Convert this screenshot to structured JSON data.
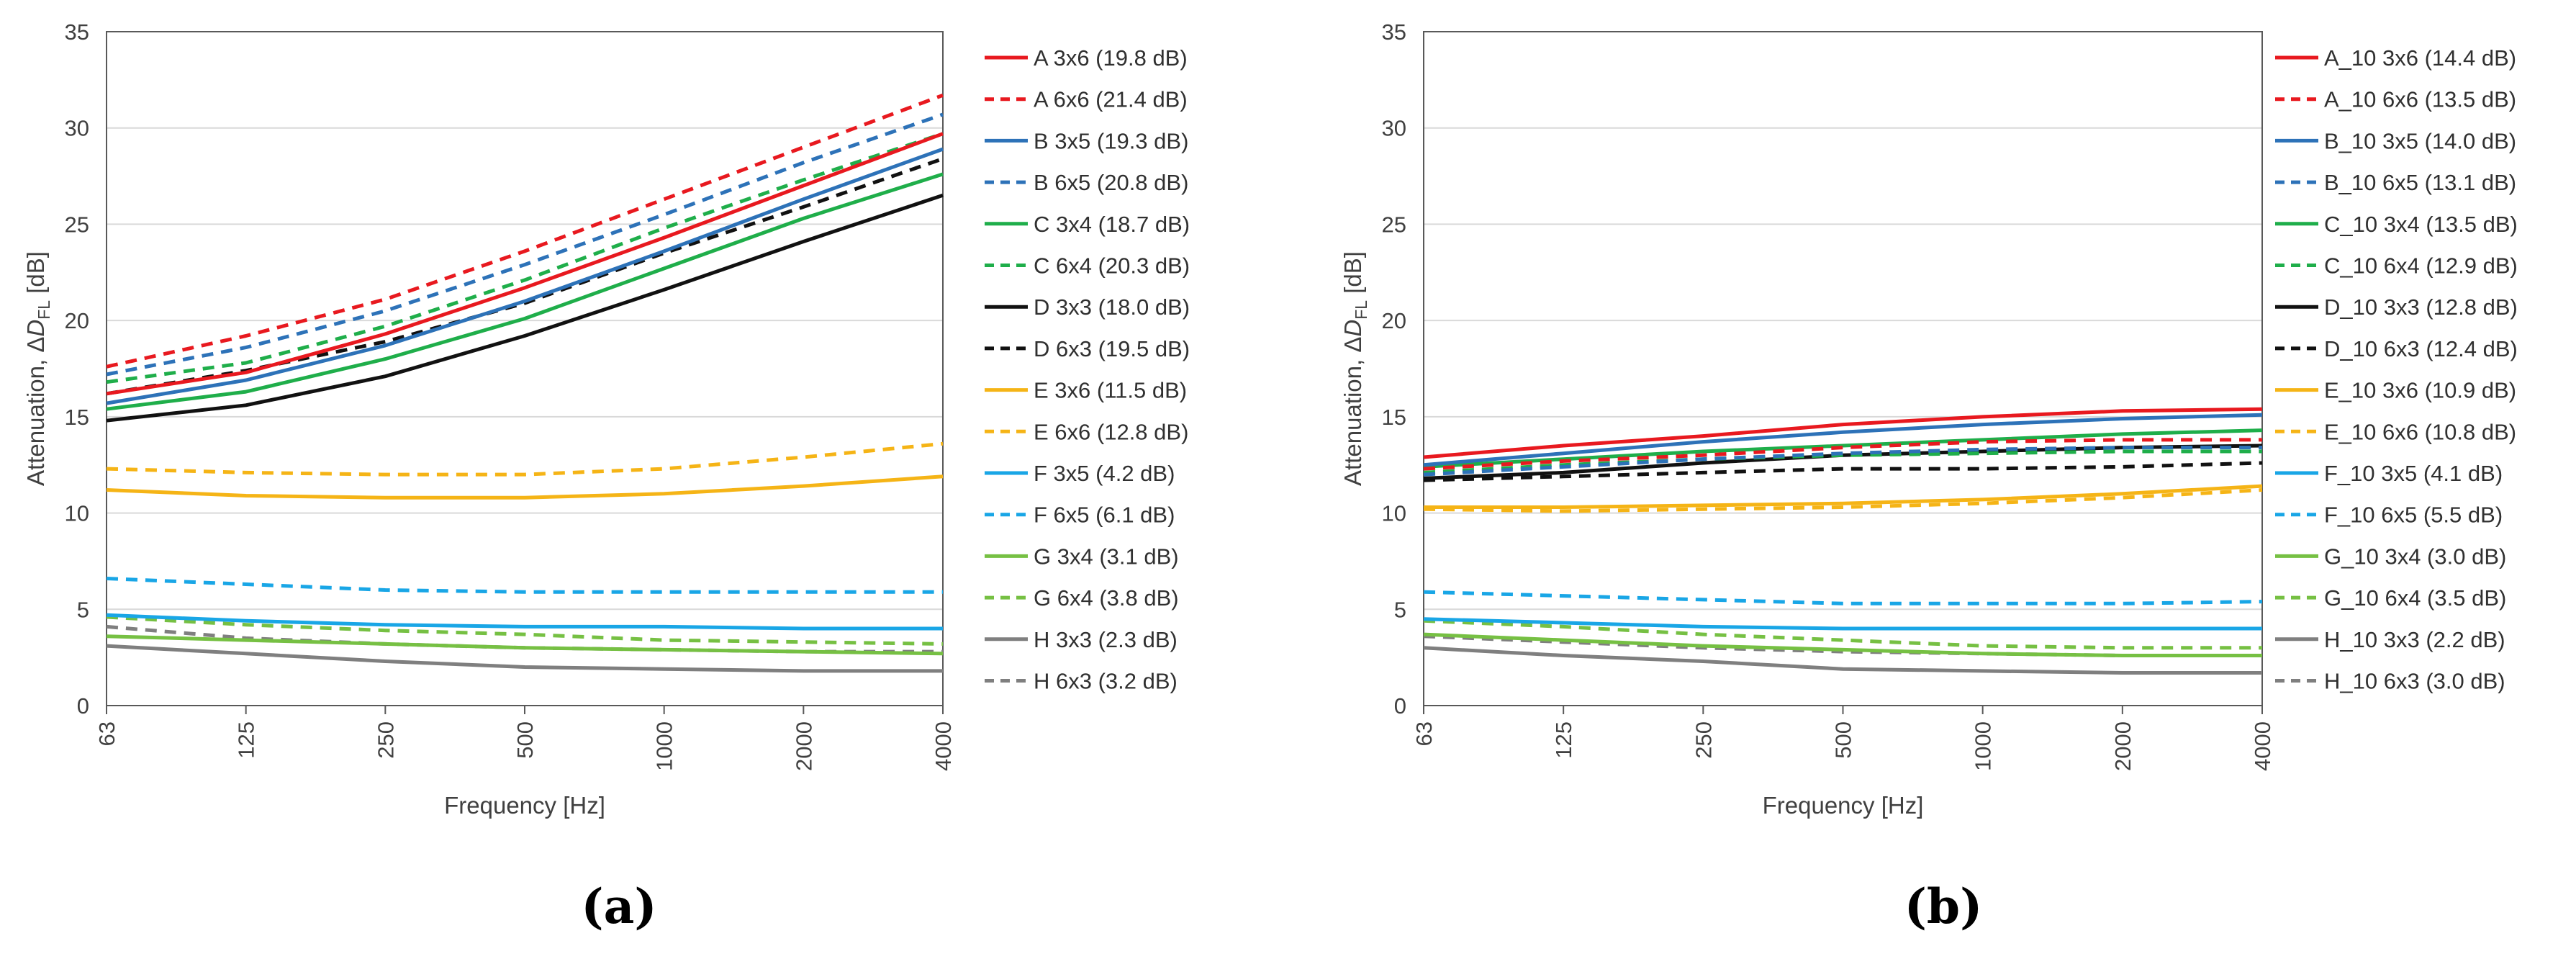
{
  "colors": {
    "A": "#e8191f",
    "B": "#2d72b8",
    "C": "#1fae4a",
    "D": "#111111",
    "E": "#f5b416",
    "F": "#19a6e6",
    "G": "#76c043",
    "H": "#7f7f7f",
    "grid": "#d9d9d9",
    "axis": "#595959"
  },
  "chart_data": [
    {
      "type": "line",
      "panel_label": "(a)",
      "xlabel": "Frequency [Hz]",
      "ylabel_main": "Attenuation, Δ",
      "ylabel_italic": "D",
      "ylabel_sub": "FL",
      "ylabel_unit": " [dB]",
      "ylim": [
        0,
        35
      ],
      "yticks": [
        "0",
        "5",
        "10",
        "15",
        "20",
        "25",
        "30",
        "35"
      ],
      "categories": [
        "63",
        "125",
        "250",
        "500",
        "1000",
        "2000",
        "4000"
      ],
      "grid": true,
      "legend_position": "right",
      "series": [
        {
          "name": "A 3x6 (19.8 dB)",
          "group": "A",
          "dashed": false,
          "values": [
            16.2,
            17.3,
            19.3,
            21.7,
            24.3,
            27.0,
            29.7
          ]
        },
        {
          "name": "A 6x6 (21.4 dB)",
          "group": "A",
          "dashed": true,
          "values": [
            17.6,
            19.2,
            21.1,
            23.6,
            26.3,
            29.0,
            31.7
          ]
        },
        {
          "name": "B 3x5 (19.3 dB)",
          "group": "B",
          "dashed": false,
          "values": [
            15.7,
            16.9,
            18.7,
            21.0,
            23.6,
            26.3,
            28.9
          ]
        },
        {
          "name": "B 6x5 (20.8 dB)",
          "group": "B",
          "dashed": true,
          "values": [
            17.2,
            18.6,
            20.5,
            22.9,
            25.5,
            28.2,
            30.7
          ]
        },
        {
          "name": "C 3x4 (18.7 dB)",
          "group": "C",
          "dashed": false,
          "values": [
            15.4,
            16.3,
            18.0,
            20.1,
            22.7,
            25.3,
            27.6
          ]
        },
        {
          "name": "C 6x4 (20.3 dB)",
          "group": "C",
          "dashed": true,
          "values": [
            16.8,
            17.8,
            19.7,
            22.1,
            24.8,
            27.3,
            29.7
          ]
        },
        {
          "name": "D 3x3 (18.0 dB)",
          "group": "D",
          "dashed": false,
          "values": [
            14.8,
            15.6,
            17.1,
            19.2,
            21.6,
            24.1,
            26.5
          ]
        },
        {
          "name": "D 6x3 (19.5 dB)",
          "group": "D",
          "dashed": true,
          "values": [
            16.2,
            17.4,
            18.9,
            20.9,
            23.5,
            25.9,
            28.4
          ]
        },
        {
          "name": "E 3x6 (11.5 dB)",
          "group": "E",
          "dashed": false,
          "values": [
            11.2,
            10.9,
            10.8,
            10.8,
            11.0,
            11.4,
            11.9
          ]
        },
        {
          "name": "E 6x6 (12.8 dB)",
          "group": "E",
          "dashed": true,
          "values": [
            12.3,
            12.1,
            12.0,
            12.0,
            12.3,
            12.9,
            13.6
          ]
        },
        {
          "name": "F 3x5 (4.2 dB)",
          "group": "F",
          "dashed": false,
          "values": [
            4.7,
            4.4,
            4.2,
            4.1,
            4.1,
            4.0,
            4.0
          ]
        },
        {
          "name": "F 6x5 (6.1 dB)",
          "group": "F",
          "dashed": true,
          "values": [
            6.6,
            6.3,
            6.0,
            5.9,
            5.9,
            5.9,
            5.9
          ]
        },
        {
          "name": "G 3x4 (3.1 dB)",
          "group": "G",
          "dashed": false,
          "values": [
            3.6,
            3.4,
            3.2,
            3.0,
            2.9,
            2.8,
            2.7
          ]
        },
        {
          "name": "G 6x4 (3.8 dB)",
          "group": "G",
          "dashed": true,
          "values": [
            4.6,
            4.2,
            3.9,
            3.7,
            3.4,
            3.3,
            3.2
          ]
        },
        {
          "name": "H 3x3 (2.3 dB)",
          "group": "H",
          "dashed": false,
          "values": [
            3.1,
            2.7,
            2.3,
            2.0,
            1.9,
            1.8,
            1.8
          ]
        },
        {
          "name": "H 6x3 (3.2 dB)",
          "group": "H",
          "dashed": true,
          "values": [
            4.1,
            3.5,
            3.2,
            3.0,
            2.9,
            2.8,
            2.8
          ]
        }
      ]
    },
    {
      "type": "line",
      "panel_label": "(b)",
      "xlabel": "Frequency [Hz]",
      "ylabel_main": "Attenuation, Δ",
      "ylabel_italic": "D",
      "ylabel_sub": "FL",
      "ylabel_unit": " [dB]",
      "ylim": [
        0,
        35
      ],
      "yticks": [
        "0",
        "5",
        "10",
        "15",
        "20",
        "25",
        "30",
        "35"
      ],
      "categories": [
        "63",
        "125",
        "250",
        "500",
        "1000",
        "2000",
        "4000"
      ],
      "grid": true,
      "legend_position": "right",
      "series": [
        {
          "name": "A_10 3x6 (14.4 dB)",
          "group": "A",
          "dashed": false,
          "values": [
            12.9,
            13.5,
            14.0,
            14.6,
            15.0,
            15.3,
            15.4
          ]
        },
        {
          "name": "A_10 6x6 (13.5 dB)",
          "group": "A",
          "dashed": true,
          "values": [
            12.3,
            12.7,
            13.0,
            13.4,
            13.7,
            13.8,
            13.8
          ]
        },
        {
          "name": "B_10 3x5 (14.0 dB)",
          "group": "B",
          "dashed": false,
          "values": [
            12.5,
            13.1,
            13.7,
            14.2,
            14.6,
            14.9,
            15.1
          ]
        },
        {
          "name": "B_10 6x5 (13.1 dB)",
          "group": "B",
          "dashed": true,
          "values": [
            12.0,
            12.4,
            12.8,
            13.1,
            13.3,
            13.4,
            13.4
          ]
        },
        {
          "name": "C_10 3x4 (13.5 dB)",
          "group": "C",
          "dashed": false,
          "values": [
            12.4,
            12.8,
            13.2,
            13.5,
            13.8,
            14.1,
            14.3
          ]
        },
        {
          "name": "C_10 6x4 (12.9 dB)",
          "group": "C",
          "dashed": true,
          "values": [
            12.1,
            12.5,
            12.8,
            13.0,
            13.1,
            13.2,
            13.2
          ]
        },
        {
          "name": "D_10 3x3 (12.8 dB)",
          "group": "D",
          "dashed": false,
          "values": [
            11.8,
            12.1,
            12.6,
            13.0,
            13.2,
            13.4,
            13.5
          ]
        },
        {
          "name": "D_10 6x3 (12.4 dB)",
          "group": "D",
          "dashed": true,
          "values": [
            11.7,
            11.9,
            12.1,
            12.3,
            12.3,
            12.4,
            12.6
          ]
        },
        {
          "name": "E_10 3x6 (10.9 dB)",
          "group": "E",
          "dashed": false,
          "values": [
            10.3,
            10.3,
            10.4,
            10.5,
            10.7,
            11.0,
            11.4
          ]
        },
        {
          "name": "E_10 6x6 (10.8 dB)",
          "group": "E",
          "dashed": true,
          "values": [
            10.2,
            10.1,
            10.2,
            10.3,
            10.5,
            10.8,
            11.2
          ]
        },
        {
          "name": "F_10 3x5 (4.1 dB)",
          "group": "F",
          "dashed": false,
          "values": [
            4.5,
            4.3,
            4.1,
            4.0,
            4.0,
            4.0,
            4.0
          ]
        },
        {
          "name": "F_10 6x5 (5.5 dB)",
          "group": "F",
          "dashed": true,
          "values": [
            5.9,
            5.7,
            5.5,
            5.3,
            5.3,
            5.3,
            5.4
          ]
        },
        {
          "name": "G_10 3x4 (3.0 dB)",
          "group": "G",
          "dashed": false,
          "values": [
            3.7,
            3.4,
            3.1,
            2.9,
            2.7,
            2.6,
            2.6
          ]
        },
        {
          "name": "G_10 6x4 (3.5 dB)",
          "group": "G",
          "dashed": true,
          "values": [
            4.4,
            4.1,
            3.7,
            3.4,
            3.1,
            3.0,
            3.0
          ]
        },
        {
          "name": "H_10 3x3 (2.2 dB)",
          "group": "H",
          "dashed": false,
          "values": [
            3.0,
            2.6,
            2.3,
            1.9,
            1.8,
            1.7,
            1.7
          ]
        },
        {
          "name": "H_10 6x3 (3.0 dB)",
          "group": "H",
          "dashed": true,
          "values": [
            3.6,
            3.3,
            3.0,
            2.8,
            2.7,
            2.6,
            2.6
          ]
        }
      ]
    }
  ]
}
